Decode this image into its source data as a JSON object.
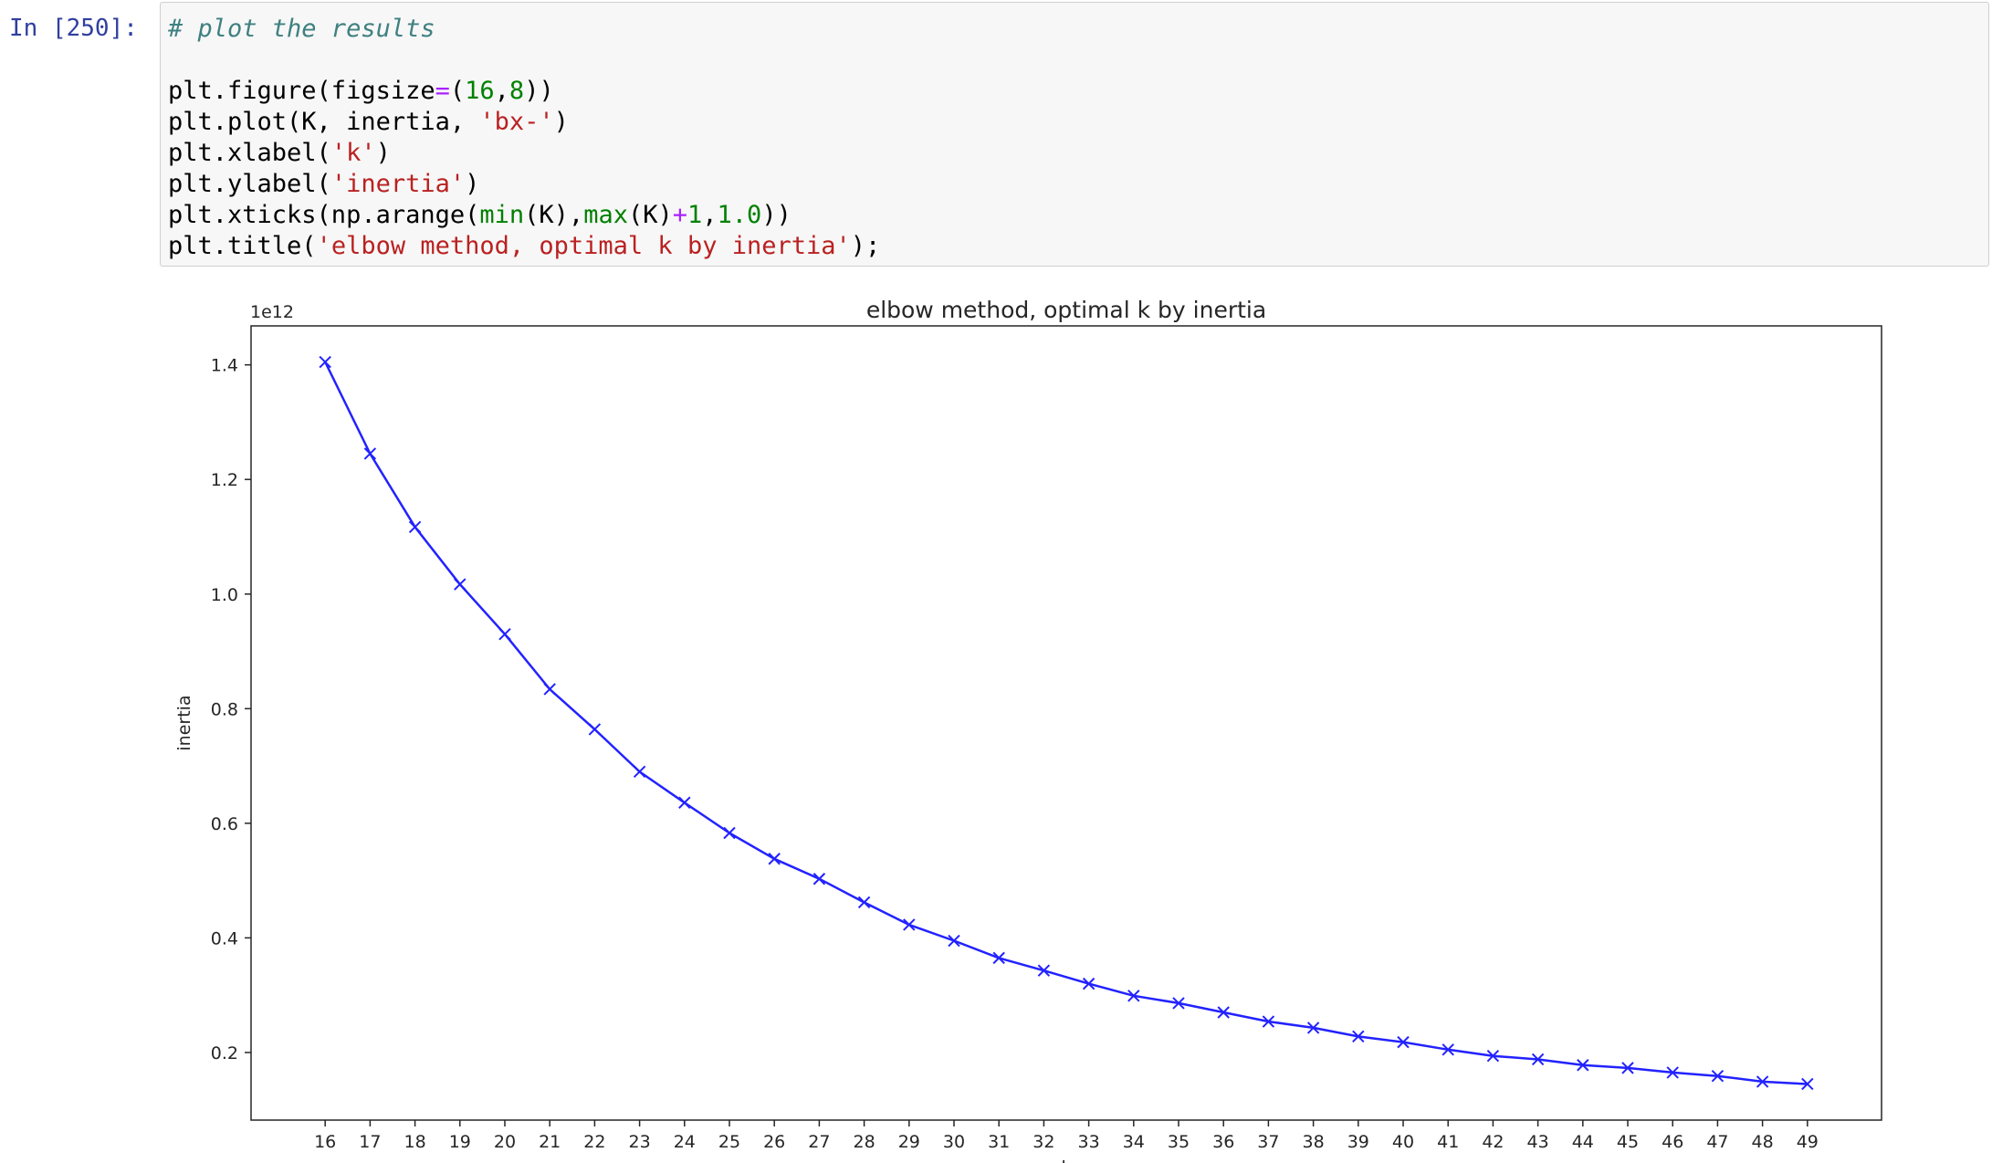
{
  "cell": {
    "prompt": "In [250]:",
    "code_lines": [
      [
        {
          "t": "# plot the results",
          "c": "c-comment"
        }
      ],
      [
        {
          "t": "",
          "c": ""
        }
      ],
      [
        {
          "t": "plt.figure(figsize",
          "c": ""
        },
        {
          "t": "=",
          "c": "c-op"
        },
        {
          "t": "(",
          "c": ""
        },
        {
          "t": "16",
          "c": "c-num"
        },
        {
          "t": ",",
          "c": ""
        },
        {
          "t": "8",
          "c": "c-num"
        },
        {
          "t": "))",
          "c": ""
        }
      ],
      [
        {
          "t": "plt.plot(K, inertia, ",
          "c": ""
        },
        {
          "t": "'bx-'",
          "c": "c-str"
        },
        {
          "t": ")",
          "c": ""
        }
      ],
      [
        {
          "t": "plt.xlabel(",
          "c": ""
        },
        {
          "t": "'k'",
          "c": "c-str"
        },
        {
          "t": ")",
          "c": ""
        }
      ],
      [
        {
          "t": "plt.ylabel(",
          "c": ""
        },
        {
          "t": "'inertia'",
          "c": "c-str"
        },
        {
          "t": ")",
          "c": ""
        }
      ],
      [
        {
          "t": "plt.xticks(np.arange(",
          "c": ""
        },
        {
          "t": "min",
          "c": "c-builtin"
        },
        {
          "t": "(K),",
          "c": ""
        },
        {
          "t": "max",
          "c": "c-builtin"
        },
        {
          "t": "(K)",
          "c": ""
        },
        {
          "t": "+",
          "c": "c-op"
        },
        {
          "t": "1",
          "c": "c-num"
        },
        {
          "t": ",",
          "c": ""
        },
        {
          "t": "1.0",
          "c": "c-num"
        },
        {
          "t": "))",
          "c": ""
        }
      ],
      [
        {
          "t": "plt.title(",
          "c": ""
        },
        {
          "t": "'elbow method, optimal k by inertia'",
          "c": "c-str"
        },
        {
          "t": ");",
          "c": ""
        }
      ]
    ]
  },
  "chart_data": {
    "type": "line",
    "title": "elbow method, optimal k by inertia",
    "xlabel": "k",
    "ylabel": "inertia",
    "y_offset_label": "1e12",
    "x": [
      16,
      17,
      18,
      19,
      20,
      21,
      22,
      23,
      24,
      25,
      26,
      27,
      28,
      29,
      30,
      31,
      32,
      33,
      34,
      35,
      36,
      37,
      38,
      39,
      40,
      41,
      42,
      43,
      44,
      45,
      46,
      47,
      48,
      49
    ],
    "series": [
      {
        "values": [
          1.405,
          1.245,
          1.117,
          1.017,
          0.93,
          0.834,
          0.764,
          0.69,
          0.636,
          0.583,
          0.538,
          0.503,
          0.462,
          0.423,
          0.395,
          0.365,
          0.343,
          0.32,
          0.299,
          0.286,
          0.27,
          0.254,
          0.243,
          0.228,
          0.218,
          0.205,
          0.194,
          0.188,
          0.178,
          0.173,
          0.165,
          0.159,
          0.149,
          0.145
        ],
        "style": "bx-",
        "color": "#2222ff"
      }
    ],
    "xticks": [
      "16",
      "17",
      "18",
      "19",
      "20",
      "21",
      "22",
      "23",
      "24",
      "25",
      "26",
      "27",
      "28",
      "29",
      "30",
      "31",
      "32",
      "33",
      "34",
      "35",
      "36",
      "37",
      "38",
      "39",
      "40",
      "41",
      "42",
      "43",
      "44",
      "45",
      "46",
      "47",
      "48",
      "49"
    ],
    "yticks": [
      0.2,
      0.4,
      0.6,
      0.8,
      1.0,
      1.2,
      1.4
    ],
    "ytick_labels": [
      "0.2",
      "0.4",
      "0.6",
      "0.8",
      "1.0",
      "1.2",
      "1.4"
    ],
    "xlim": [
      14.35,
      50.65
    ],
    "ylim": [
      0.082,
      1.468
    ],
    "grid": false
  }
}
